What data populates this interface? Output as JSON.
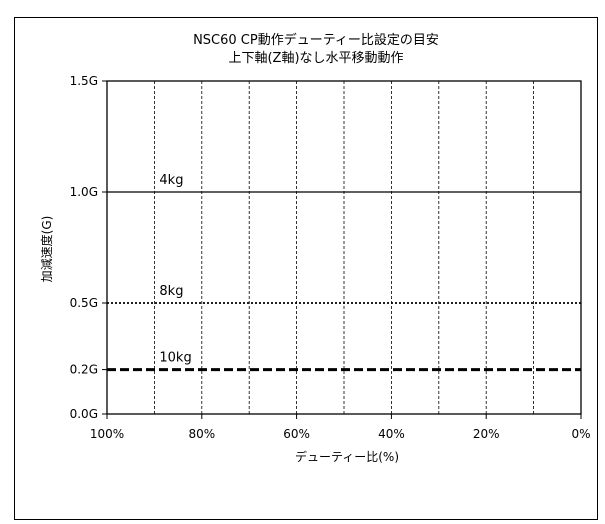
{
  "chart_data": {
    "type": "line",
    "title": "NSC60 CP動作デューティー比設定の目安",
    "subtitle": "上下軸(Z軸)なし水平移動動作",
    "xlabel": "デューティー比(%)",
    "ylabel": "加減速度(G)",
    "x_reversed": true,
    "xlim": [
      100,
      0
    ],
    "ylim": [
      0,
      1.5
    ],
    "x_ticks": [
      {
        "value": 100,
        "label": "100%"
      },
      {
        "value": 80,
        "label": "80%"
      },
      {
        "value": 60,
        "label": "60%"
      },
      {
        "value": 40,
        "label": "40%"
      },
      {
        "value": 20,
        "label": "20%"
      },
      {
        "value": 0,
        "label": "0%"
      }
    ],
    "y_ticks": [
      {
        "value": 1.5,
        "label": "1.5G"
      },
      {
        "value": 1.0,
        "label": "1.0G"
      },
      {
        "value": 0.5,
        "label": "0.5G"
      },
      {
        "value": 0.2,
        "label": "0.2G"
      },
      {
        "value": 0.0,
        "label": "0.0G"
      }
    ],
    "vertical_gridlines": [
      90,
      80,
      70,
      60,
      50,
      40,
      30,
      20,
      10
    ],
    "grid": "vertical dashed",
    "series": [
      {
        "name": "4kg",
        "x": [
          100,
          0
        ],
        "y": [
          1.0,
          1.0
        ],
        "style": "solid",
        "color": "#000000"
      },
      {
        "name": "8kg",
        "x": [
          100,
          0
        ],
        "y": [
          0.5,
          0.5
        ],
        "style": "dotted",
        "color": "#000000"
      },
      {
        "name": "10kg",
        "x": [
          100,
          0
        ],
        "y": [
          0.2,
          0.2
        ],
        "style": "dashed-bold",
        "color": "#000000"
      }
    ]
  }
}
